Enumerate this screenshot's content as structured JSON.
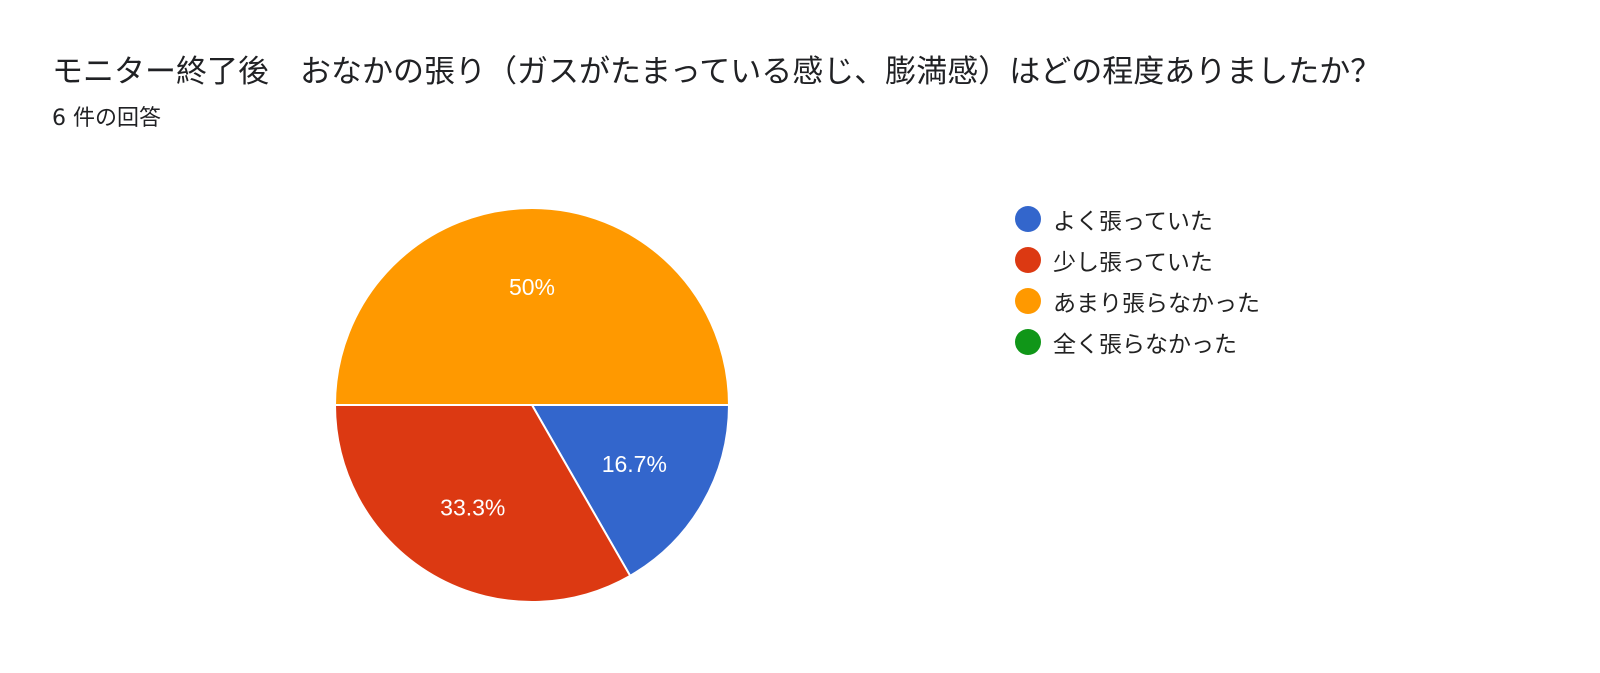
{
  "header": {
    "title": "モニター終了後　おなかの張り（ガスがたまっている感じ、膨満感）はどの程度ありましたか？",
    "response_count": "6 件の回答"
  },
  "chart_data": {
    "type": "pie",
    "categories": [
      "よく張っていた",
      "少し張っていた",
      "あまり張らなかった",
      "全く張らなかった"
    ],
    "values": [
      16.7,
      33.3,
      50,
      0
    ],
    "labels": [
      "16.7%",
      "33.3%",
      "50%",
      ""
    ],
    "colors": [
      "#3366cc",
      "#dc3912",
      "#ff9900",
      "#109618"
    ],
    "legend_position": "right"
  }
}
